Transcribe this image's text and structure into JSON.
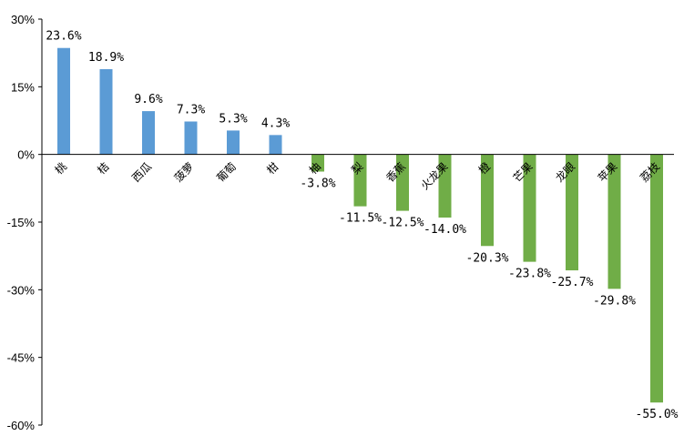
{
  "chart_data": {
    "type": "bar",
    "title": "",
    "xlabel": "",
    "ylabel": "",
    "ylim": [
      -60,
      30
    ],
    "yticks": [
      "30%",
      "15%",
      "0%",
      "-15%",
      "-30%",
      "-45%",
      "-60%"
    ],
    "grid": false,
    "legend": "none",
    "categories": [
      "桃",
      "桔",
      "西瓜",
      "菠萝",
      "葡萄",
      "柑",
      "柚",
      "梨",
      "香蕉",
      "火龙果",
      "橙",
      "芒果",
      "龙眼",
      "苹果",
      "荔枝"
    ],
    "values": [
      23.6,
      18.9,
      9.6,
      7.3,
      5.3,
      4.3,
      -3.8,
      -11.5,
      -12.5,
      -14.0,
      -20.3,
      -23.8,
      -25.7,
      -29.8,
      -55.0
    ],
    "data_labels": [
      "23.6%",
      "18.9%",
      "9.6%",
      "7.3%",
      "5.3%",
      "4.3%",
      "-3.8%",
      "-11.5%",
      "-12.5%",
      "-14.0%",
      "-20.3%",
      "-23.8%",
      "-25.7%",
      "-29.8%",
      "-55.0%"
    ],
    "colors": {
      "positive": "#5b9bd5",
      "negative": "#70ad47"
    }
  }
}
